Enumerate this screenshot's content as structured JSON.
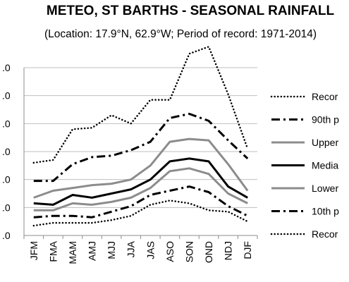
{
  "chart_data": {
    "type": "line",
    "title": "METEO, ST BARTHS - SEASONAL RAINFALL",
    "subtitle": "(Location: 17.9°N, 62.9°W; Period of record: 1971-2014)",
    "categories": [
      "JFM",
      "FMA",
      "MAM",
      "AMJ",
      "MJJ",
      "JJA",
      "JAS",
      "ASO",
      "SON",
      "OND",
      "NDJ",
      "DJF"
    ],
    "y_tick_labels": [
      ".0",
      ".0",
      ".0",
      ".0",
      ".0",
      ".0",
      ".0"
    ],
    "ylim": [
      0,
      6
    ],
    "grid": "horizontal",
    "legend_position": "right",
    "series": [
      {
        "name": "Recor",
        "style": "dotted",
        "color": "#000000",
        "values": [
          2.6,
          2.7,
          3.8,
          3.85,
          4.3,
          4.0,
          4.85,
          4.85,
          6.5,
          6.75,
          5.05,
          3.1
        ]
      },
      {
        "name": "90th p",
        "style": "dashdot",
        "color": "#000000",
        "values": [
          1.95,
          1.95,
          2.55,
          2.8,
          2.85,
          3.05,
          3.35,
          4.2,
          4.35,
          4.1,
          3.4,
          2.75
        ]
      },
      {
        "name": "Upper",
        "style": "solid",
        "color": "#8c8c8c",
        "values": [
          1.35,
          1.6,
          1.7,
          1.8,
          1.85,
          2.0,
          2.5,
          3.35,
          3.45,
          3.4,
          2.55,
          1.6
        ]
      },
      {
        "name": "Media",
        "style": "solid",
        "color": "#000000",
        "values": [
          1.15,
          1.1,
          1.45,
          1.35,
          1.5,
          1.65,
          2.0,
          2.65,
          2.75,
          2.65,
          1.75,
          1.35
        ]
      },
      {
        "name": "Lower",
        "style": "solid",
        "color": "#8c8c8c",
        "values": [
          0.9,
          0.9,
          1.15,
          1.1,
          1.2,
          1.35,
          1.7,
          2.3,
          2.4,
          2.2,
          1.5,
          1.15
        ]
      },
      {
        "name": "10th p",
        "style": "dashdot",
        "color": "#000000",
        "values": [
          0.65,
          0.7,
          0.7,
          0.65,
          0.85,
          1.05,
          1.45,
          1.6,
          1.75,
          1.55,
          1.05,
          0.7
        ]
      },
      {
        "name": "Recor",
        "style": "dotted",
        "color": "#000000",
        "values": [
          0.35,
          0.45,
          0.45,
          0.45,
          0.55,
          0.7,
          1.1,
          1.25,
          1.15,
          0.9,
          0.85,
          0.5
        ]
      }
    ]
  }
}
